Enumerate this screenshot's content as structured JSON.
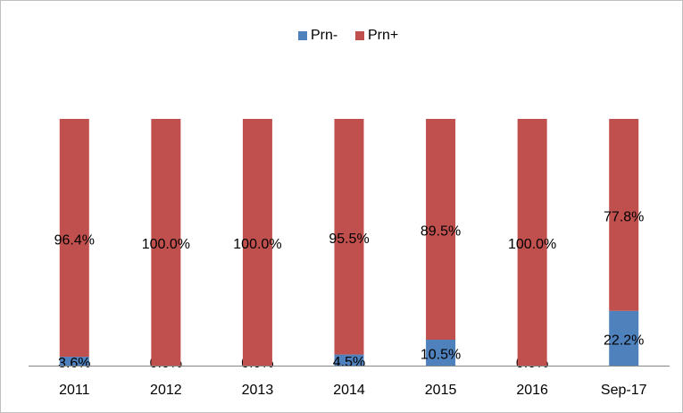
{
  "chart_data": {
    "type": "stacked_bar",
    "categories": [
      "2011",
      "2012",
      "2013",
      "2014",
      "2015",
      "2016",
      "Sep-17"
    ],
    "series": [
      {
        "name": "Prn-",
        "color": "#4f81bd",
        "values": [
          3.6,
          0,
          0,
          4.5,
          10.5,
          0,
          22.2
        ],
        "value_labels": [
          "3.6%",
          "0.0%",
          "0.0%",
          "4.5%",
          "10.5%",
          "0.0%",
          "22.2%"
        ]
      },
      {
        "name": "Prn+",
        "color": "#c0504d",
        "values": [
          96.4,
          100,
          100,
          95.5,
          89.5,
          100,
          77.8
        ],
        "value_labels": [
          "96.4%",
          "100.0%",
          "100.0%",
          "95.5%",
          "89.5%",
          "100.0%",
          "77.8%"
        ]
      }
    ],
    "legend": "top"
  }
}
